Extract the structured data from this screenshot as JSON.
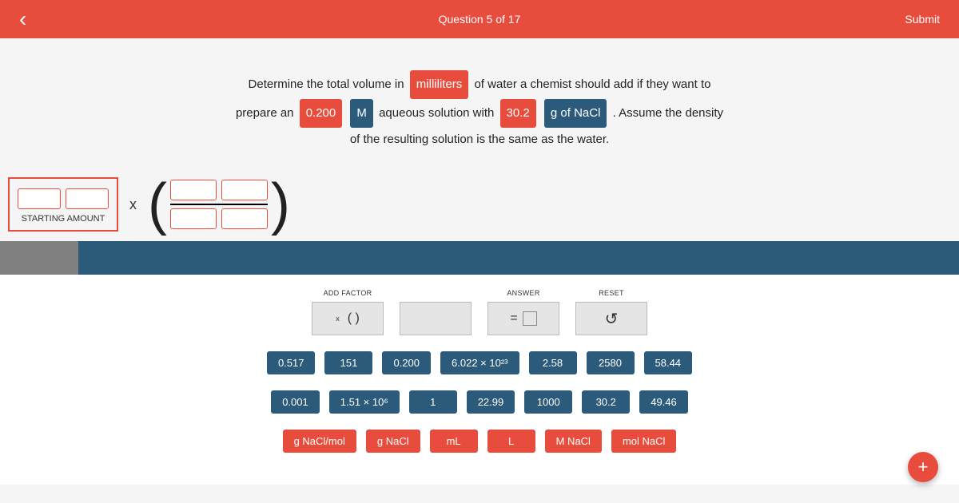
{
  "header": {
    "question_label": "Question 5 of 17",
    "submit": "Submit"
  },
  "question": {
    "t1": "Determine the total volume in",
    "chip1": "milliliters",
    "t2": "of water a chemist should add if they want to",
    "t3": "prepare an",
    "chip2": "0.200",
    "chip3": "M",
    "t4": "aqueous solution with",
    "chip4": "30.2",
    "chip5": "g of NaCl",
    "t5": ". Assume the density",
    "t6": "of the resulting solution is the same as the water."
  },
  "work": {
    "starting_label": "STARTING AMOUNT",
    "times": "x"
  },
  "tools": {
    "add_factor_label": "ADD FACTOR",
    "answer_label": "ANSWER",
    "reset_label": "RESET",
    "add_factor_x": "x",
    "add_factor_parens": "(   )",
    "answer_eq": "=",
    "reset_icon": "↺"
  },
  "values_row1": [
    "0.517",
    "151",
    "0.200",
    "6.022 × 10²³",
    "2.58",
    "2580",
    "58.44"
  ],
  "values_row2": [
    "0.001",
    "1.51 × 10⁶",
    "1",
    "22.99",
    "1000",
    "30.2",
    "49.46"
  ],
  "units": [
    "g NaCl/mol",
    "g NaCl",
    "mL",
    "L",
    "M NaCl",
    "mol NaCl"
  ],
  "fab": "+",
  "colors": {
    "primary": "#e84c3d",
    "secondary": "#2c5a7a"
  }
}
